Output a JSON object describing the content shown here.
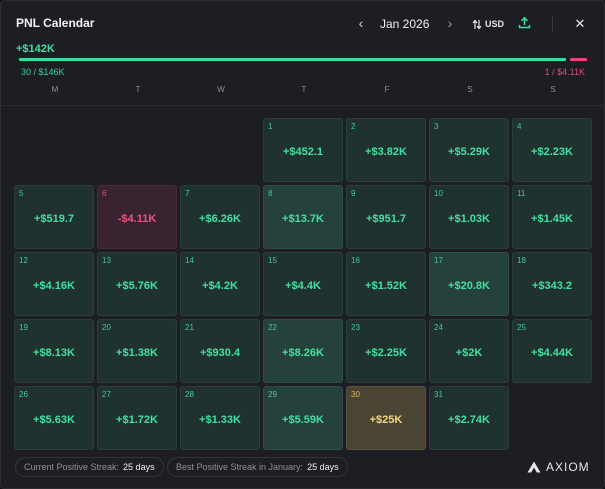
{
  "header": {
    "title": "PNL Calendar",
    "month": "Jan 2026",
    "prev_icon": "chevron-left-icon",
    "next_icon": "chevron-right-icon",
    "currency": "USD",
    "currency_icon": "sort-arrows-icon",
    "export_icon": "upload-icon",
    "close_icon": "close-icon"
  },
  "summary": {
    "total": "+$142K",
    "positive": "30 / $146K",
    "negative": "1 / $4.11K",
    "positive_share": 0.97,
    "negative_share": 0.03,
    "positive_color": "#3fd99a",
    "negative_color": "#e2487e"
  },
  "weekdays": [
    "M",
    "T",
    "W",
    "T",
    "F",
    "S",
    "S"
  ],
  "days": [
    {
      "day": "1",
      "value": "+$452.1",
      "tone": "pos"
    },
    {
      "day": "2",
      "value": "+$3.82K",
      "tone": "pos"
    },
    {
      "day": "3",
      "value": "+$5.29K",
      "tone": "pos"
    },
    {
      "day": "4",
      "value": "+$2.23K",
      "tone": "pos"
    },
    {
      "day": "5",
      "value": "+$519.7",
      "tone": "pos"
    },
    {
      "day": "6",
      "value": "-$4.11K",
      "tone": "neg"
    },
    {
      "day": "7",
      "value": "+$6.26K",
      "tone": "pos"
    },
    {
      "day": "8",
      "value": "+$13.7K",
      "tone": "strong"
    },
    {
      "day": "9",
      "value": "+$951.7",
      "tone": "pos"
    },
    {
      "day": "10",
      "value": "+$1.03K",
      "tone": "pos"
    },
    {
      "day": "11",
      "value": "+$1.45K",
      "tone": "pos"
    },
    {
      "day": "12",
      "value": "+$4.16K",
      "tone": "pos"
    },
    {
      "day": "13",
      "value": "+$5.76K",
      "tone": "pos"
    },
    {
      "day": "14",
      "value": "+$4.2K",
      "tone": "pos"
    },
    {
      "day": "15",
      "value": "+$4.4K",
      "tone": "pos"
    },
    {
      "day": "16",
      "value": "+$1.52K",
      "tone": "pos"
    },
    {
      "day": "17",
      "value": "+$20.8K",
      "tone": "strong"
    },
    {
      "day": "18",
      "value": "+$343.2",
      "tone": "pos"
    },
    {
      "day": "19",
      "value": "+$8.13K",
      "tone": "pos"
    },
    {
      "day": "20",
      "value": "+$1.38K",
      "tone": "pos"
    },
    {
      "day": "21",
      "value": "+$930.4",
      "tone": "pos"
    },
    {
      "day": "22",
      "value": "+$8.26K",
      "tone": "strong"
    },
    {
      "day": "23",
      "value": "+$2.25K",
      "tone": "pos"
    },
    {
      "day": "24",
      "value": "+$2K",
      "tone": "pos"
    },
    {
      "day": "25",
      "value": "+$4.44K",
      "tone": "pos"
    },
    {
      "day": "26",
      "value": "+$5.63K",
      "tone": "pos"
    },
    {
      "day": "27",
      "value": "+$1.72K",
      "tone": "pos"
    },
    {
      "day": "28",
      "value": "+$1.33K",
      "tone": "pos"
    },
    {
      "day": "29",
      "value": "+$5.59K",
      "tone": "strong"
    },
    {
      "day": "30",
      "value": "+$25K",
      "tone": "gold"
    },
    {
      "day": "31",
      "value": "+$2.74K",
      "tone": "pos"
    }
  ],
  "first_weekday_index": 3,
  "footer": {
    "current_label": "Current Positive Streak:",
    "current_value": "25 days",
    "best_label": "Best Positive Streak in January:",
    "best_value": "25 days",
    "brand": "AXIOM",
    "brand_icon": "axiom-logo-icon"
  }
}
